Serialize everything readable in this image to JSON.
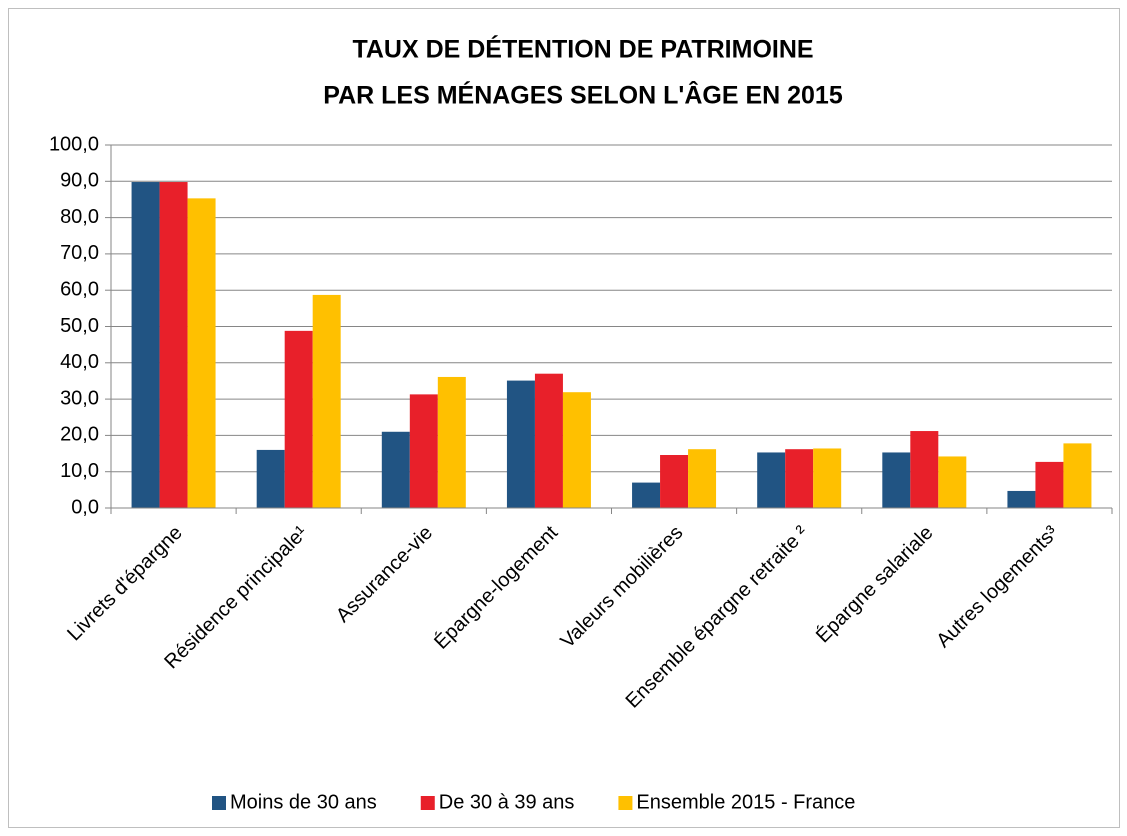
{
  "chart_data": {
    "type": "bar",
    "title": [
      "TAUX DE DÉTENTION DE PATRIMOINE",
      "PAR LES MÉNAGES SELON L'ÂGE EN 2015"
    ],
    "categories": [
      "Livrets d'épargne",
      "Résidence principale¹",
      "Assurance-vie",
      "Épargne-logement",
      "Valeurs mobilières",
      "Ensemble épargne retraite ²",
      "Épargne salariale",
      "Autres logements³"
    ],
    "series": [
      {
        "name": "Moins de 30 ans",
        "color": "#215483",
        "values": [
          89.8,
          16.0,
          21.0,
          35.1,
          7.0,
          15.3,
          15.3,
          4.7
        ]
      },
      {
        "name": "De 30 à 39 ans",
        "color": "#E8202A",
        "values": [
          89.8,
          48.8,
          31.3,
          37.0,
          14.6,
          16.2,
          21.2,
          12.7
        ]
      },
      {
        "name": "Ensemble 2015 - France",
        "color": "#FFC000",
        "values": [
          85.3,
          58.7,
          36.1,
          31.9,
          16.2,
          16.4,
          14.2,
          17.8
        ]
      }
    ],
    "ylim": [
      0,
      100
    ],
    "yticks": [
      {
        "value": 0,
        "label": "0,0"
      },
      {
        "value": 10,
        "label": "10,0"
      },
      {
        "value": 20,
        "label": "20,0"
      },
      {
        "value": 30,
        "label": "30,0"
      },
      {
        "value": 40,
        "label": "40,0"
      },
      {
        "value": 50,
        "label": "50,0"
      },
      {
        "value": 60,
        "label": "60,0"
      },
      {
        "value": 70,
        "label": "70,0"
      },
      {
        "value": 80,
        "label": "80,0"
      },
      {
        "value": 90,
        "label": "90,0"
      },
      {
        "value": 100,
        "label": "100,0"
      }
    ],
    "grid": true,
    "legend": "bottom"
  }
}
